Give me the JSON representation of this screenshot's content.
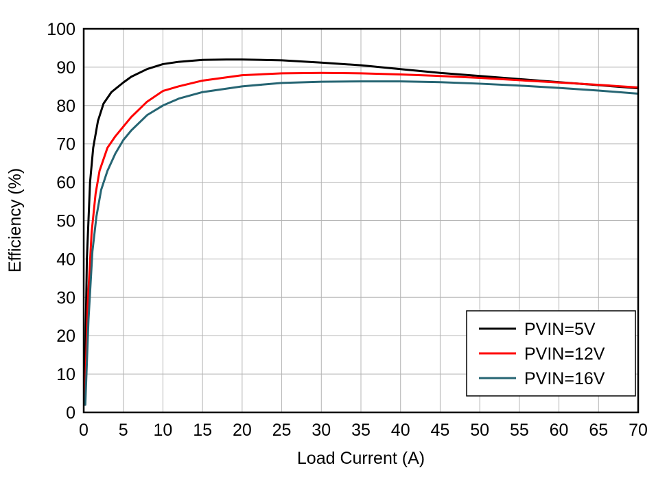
{
  "chart_data": {
    "type": "line",
    "title": "",
    "xlabel": "Load Current (A)",
    "ylabel": "Efficiency (%)",
    "xlim": [
      0,
      70
    ],
    "ylim": [
      0,
      100
    ],
    "xticks": [
      0,
      5,
      10,
      15,
      20,
      25,
      30,
      35,
      40,
      45,
      50,
      55,
      60,
      65,
      70
    ],
    "yticks": [
      0,
      10,
      20,
      30,
      40,
      50,
      60,
      70,
      80,
      90,
      100
    ],
    "grid": true,
    "legend_position": "bottom-right",
    "series": [
      {
        "name": "PVIN=5V",
        "color": "#000000",
        "x": [
          0.1,
          0.4,
          0.8,
          1.2,
          1.8,
          2.5,
          3.5,
          5,
          6,
          8,
          10,
          12,
          15,
          18,
          20,
          25,
          30,
          35,
          40,
          45,
          50,
          55,
          60,
          65,
          70
        ],
        "y": [
          2,
          40,
          60,
          69,
          76,
          80.5,
          83.5,
          86,
          87.5,
          89.5,
          90.8,
          91.4,
          91.9,
          92,
          92,
          91.8,
          91.2,
          90.5,
          89.5,
          88.5,
          87.7,
          86.9,
          86.1,
          85.3,
          84.5
        ]
      },
      {
        "name": "PVIN=12V",
        "color": "#ff0000",
        "x": [
          0.15,
          0.5,
          1,
          1.5,
          2,
          3,
          4,
          5,
          6,
          8,
          10,
          12,
          15,
          20,
          25,
          30,
          35,
          40,
          45,
          50,
          55,
          60,
          65,
          70
        ],
        "y": [
          2,
          28,
          47,
          57,
          63,
          69,
          72,
          74.5,
          77,
          81,
          83.8,
          85,
          86.5,
          87.9,
          88.4,
          88.5,
          88.4,
          88.1,
          87.7,
          87.2,
          86.6,
          86,
          85.4,
          84.7
        ]
      },
      {
        "name": "PVIN=16V",
        "color": "#266573",
        "x": [
          0.2,
          0.6,
          1.1,
          1.6,
          2.2,
          3,
          4,
          5,
          6,
          8,
          10,
          12,
          15,
          20,
          25,
          30,
          35,
          40,
          45,
          50,
          55,
          60,
          65,
          70
        ],
        "y": [
          2,
          24,
          42,
          51,
          58,
          63,
          67.5,
          71,
          73.5,
          77.5,
          80,
          81.8,
          83.5,
          85,
          85.9,
          86.2,
          86.3,
          86.3,
          86.1,
          85.7,
          85.2,
          84.6,
          83.9,
          83.1
        ]
      }
    ]
  },
  "colors": {
    "grid": "#b3b3b3",
    "axis": "#000000",
    "background": "#ffffff"
  }
}
